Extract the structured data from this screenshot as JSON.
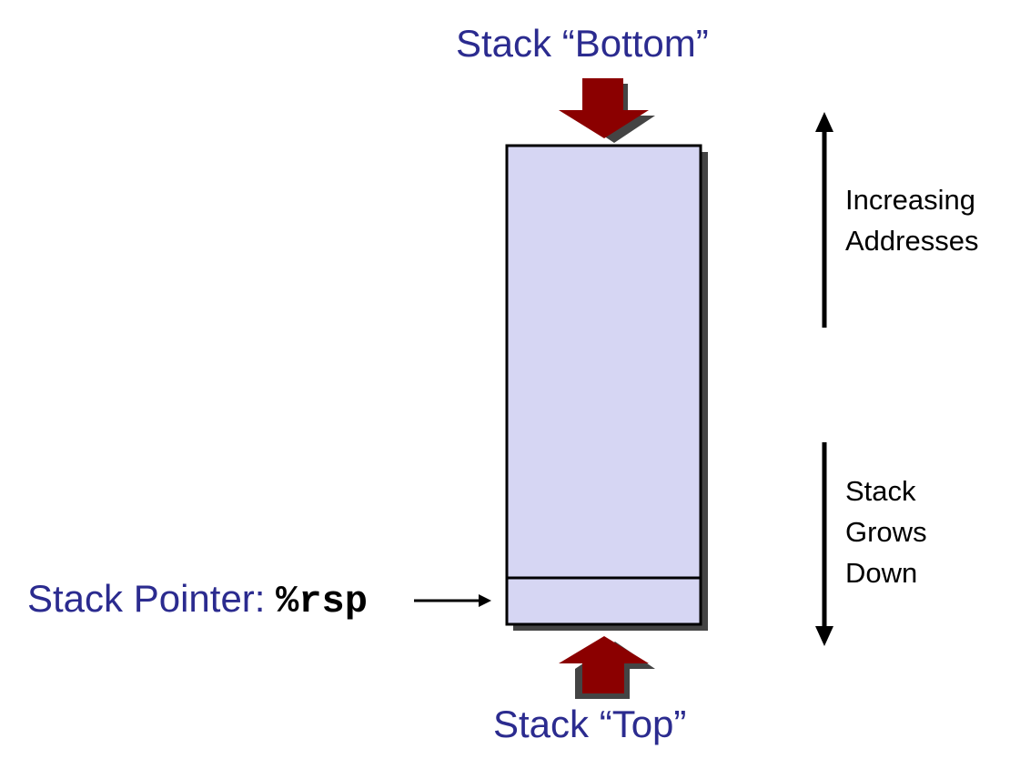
{
  "labels": {
    "stack_bottom": "Stack “Bottom”",
    "stack_top": "Stack “Top”",
    "stack_pointer_prefix": "Stack Pointer: ",
    "stack_pointer_register": "%rsp",
    "increasing_addresses_line1": "Increasing",
    "increasing_addresses_line2": "Addresses",
    "grows_line1": "Stack",
    "grows_line2": "Grows",
    "grows_line3": "Down"
  },
  "colors": {
    "title_text": "#2b2b8f",
    "stack_fill": "#d6d6f3",
    "block_arrow": "#8b0000",
    "shadow": "#444444"
  }
}
